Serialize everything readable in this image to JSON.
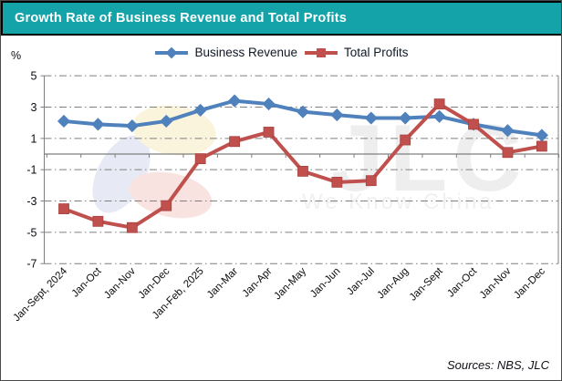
{
  "window": {
    "title": "Growth Rate of Business Revenue and Total Profits"
  },
  "unit_label": "%",
  "chart_data": {
    "type": "line",
    "title": "Growth Rate of Business Revenue and Total Profits",
    "ylabel": "%",
    "xlabel": "",
    "ylim": [
      -7,
      5
    ],
    "ytick_step": 2,
    "ytick_labels": [
      "5",
      "3",
      "1",
      "-1",
      "-3",
      "-5",
      "-7"
    ],
    "grid": "horizontal dash-dot",
    "legend_position": "top-center",
    "categories": [
      "Jan-Sept, 2024",
      "Jan-Oct",
      "Jan-Nov",
      "Jan-Dec",
      "Jan-Feb, 2025",
      "Jan-Mar",
      "Jan-Apr",
      "Jan-May",
      "Jan-Jun",
      "Jan-Jul",
      "Jan-Aug",
      "Jan-Sept",
      "Jan-Oct",
      "Jan-Nov",
      "Jan-Dec"
    ],
    "series": [
      {
        "name": "Business Revenue",
        "color": "#4F81BD",
        "marker": "diamond",
        "values": [
          2.1,
          1.9,
          1.8,
          2.1,
          2.8,
          3.4,
          3.2,
          2.7,
          2.5,
          2.3,
          2.3,
          2.4,
          1.9,
          1.5,
          1.2
        ]
      },
      {
        "name": "Total Profits",
        "color": "#C0504D",
        "marker": "square",
        "values": [
          -3.5,
          -4.3,
          -4.7,
          -3.3,
          -0.3,
          0.8,
          1.4,
          -1.1,
          -1.8,
          -1.7,
          0.9,
          3.2,
          1.9,
          0.1,
          0.5
        ]
      }
    ]
  },
  "watermark": {
    "text": "JLC",
    "tagline": "We Know China",
    "logo": "jlc-flower-logo",
    "petal_colors": [
      "#6d83c2",
      "#e9bc2f",
      "#d65a45"
    ]
  },
  "footer": {
    "sources": "Sources: NBS, JLC"
  },
  "colors": {
    "titlebar_bg": "#14a3a8",
    "title_text": "#ffffff",
    "gridline": "#7f7f7f",
    "axis": "#7f7f7f",
    "tick_text": "#0b0b14"
  }
}
